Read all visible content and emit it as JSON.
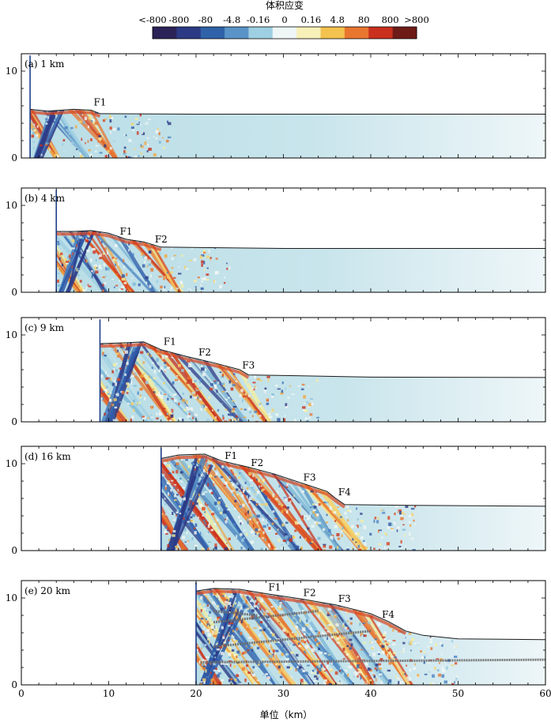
{
  "chart_data": {
    "type": "heatmap",
    "title": "",
    "colorbar": {
      "title": "体积应变",
      "tick_labels": [
        "<-800",
        "-800",
        "-80",
        "-4.8",
        "-0.16",
        "0",
        "0.16",
        "4.8",
        "80",
        "800",
        ">800"
      ],
      "colors": [
        "#2b2257",
        "#2c3a86",
        "#2f62a8",
        "#5a93c7",
        "#9fcfe2",
        "#eef6f6",
        "#f7f0b8",
        "#f4c24e",
        "#e9762f",
        "#c9301d",
        "#6e1b17"
      ]
    },
    "xlabel": "单位（km）",
    "xlim": [
      0,
      60
    ],
    "ylim": [
      0,
      12
    ],
    "x_ticks": [
      0,
      10,
      20,
      30,
      40,
      50,
      60
    ],
    "y_ticks": [
      0,
      10
    ],
    "panels": [
      {
        "label": "(a) 1 km",
        "wall_x": 1,
        "surface": [
          [
            1,
            5.6
          ],
          [
            3,
            5.4
          ],
          [
            6,
            5.6
          ],
          [
            8,
            5.5
          ],
          [
            9,
            5.1
          ],
          [
            20,
            5.05
          ],
          [
            40,
            5.05
          ],
          [
            60,
            5.05
          ]
        ],
        "faults": [
          {
            "name": "F1",
            "x": 9,
            "y": 5.5
          }
        ]
      },
      {
        "label": "(b) 4 km",
        "wall_x": 4,
        "surface": [
          [
            4,
            7.0
          ],
          [
            6,
            7.0
          ],
          [
            8,
            7.1
          ],
          [
            10,
            6.8
          ],
          [
            12,
            6.1
          ],
          [
            14,
            5.8
          ],
          [
            16,
            5.2
          ],
          [
            30,
            5.05
          ],
          [
            60,
            5.05
          ]
        ],
        "faults": [
          {
            "name": "F1",
            "x": 12,
            "y": 6.1
          },
          {
            "name": "F2",
            "x": 16,
            "y": 5.2
          }
        ]
      },
      {
        "label": "(c) 9 km",
        "wall_x": 9,
        "surface": [
          [
            9,
            9.0
          ],
          [
            12,
            9.1
          ],
          [
            14,
            9.2
          ],
          [
            16,
            8.3
          ],
          [
            19,
            7.5
          ],
          [
            22,
            6.8
          ],
          [
            25,
            6.0
          ],
          [
            26,
            5.4
          ],
          [
            40,
            5.15
          ],
          [
            60,
            5.1
          ]
        ],
        "faults": [
          {
            "name": "F1",
            "x": 17,
            "y": 8.3
          },
          {
            "name": "F2",
            "x": 21,
            "y": 7.1
          },
          {
            "name": "F3",
            "x": 26,
            "y": 5.6
          }
        ]
      },
      {
        "label": "(d) 16 km",
        "wall_x": 16,
        "surface": [
          [
            16,
            10.6
          ],
          [
            18,
            11.0
          ],
          [
            21,
            11.1
          ],
          [
            23,
            10.3
          ],
          [
            26,
            9.6
          ],
          [
            29,
            8.8
          ],
          [
            32,
            7.8
          ],
          [
            35,
            6.8
          ],
          [
            36,
            6.0
          ],
          [
            37,
            5.3
          ],
          [
            45,
            5.2
          ],
          [
            60,
            5.1
          ]
        ],
        "faults": [
          {
            "name": "F1",
            "x": 24,
            "y": 10.0
          },
          {
            "name": "F2",
            "x": 27,
            "y": 9.2
          },
          {
            "name": "F3",
            "x": 33,
            "y": 7.5
          },
          {
            "name": "F4",
            "x": 37,
            "y": 5.8
          }
        ]
      },
      {
        "label": "(e) 20 km",
        "wall_x": 20,
        "surface": [
          [
            20,
            10.8
          ],
          [
            22,
            11.1
          ],
          [
            25,
            11.0
          ],
          [
            28,
            10.5
          ],
          [
            32,
            9.9
          ],
          [
            36,
            9.2
          ],
          [
            40,
            8.2
          ],
          [
            42,
            7.3
          ],
          [
            44,
            6.2
          ],
          [
            46,
            5.7
          ],
          [
            50,
            5.3
          ],
          [
            60,
            5.2
          ]
        ],
        "faults": [
          {
            "name": "F1",
            "x": 29,
            "y": 10.3
          },
          {
            "name": "F2",
            "x": 33,
            "y": 9.7
          },
          {
            "name": "F3",
            "x": 37,
            "y": 9.0
          },
          {
            "name": "F4",
            "x": 42,
            "y": 7.2
          }
        ]
      }
    ]
  }
}
